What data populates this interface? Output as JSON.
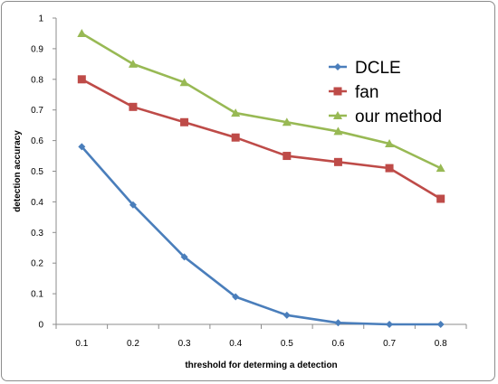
{
  "chart_data": {
    "type": "line",
    "title": "",
    "xlabel": "threshold for determing a detection",
    "ylabel": "detection accuracy",
    "categories": [
      "0.1",
      "0.2",
      "0.3",
      "0.4",
      "0.5",
      "0.6",
      "0.7",
      "0.8"
    ],
    "y_ticks": [
      "0",
      "0.1",
      "0.2",
      "0.3",
      "0.4",
      "0.5",
      "0.6",
      "0.7",
      "0.8",
      "0.9",
      "1"
    ],
    "ylim": [
      0,
      1
    ],
    "grid": false,
    "legend_position": "top-right",
    "series": [
      {
        "name": "DCLE",
        "color": "#4a7ebb",
        "marker": "diamond",
        "values": [
          0.58,
          0.39,
          0.22,
          0.09,
          0.03,
          0.005,
          0.0,
          0.0
        ]
      },
      {
        "name": "fan",
        "color": "#be4b48",
        "marker": "square",
        "values": [
          0.8,
          0.71,
          0.66,
          0.61,
          0.55,
          0.53,
          0.51,
          0.41
        ]
      },
      {
        "name": "our method",
        "color": "#98b954",
        "marker": "triangle",
        "values": [
          0.95,
          0.85,
          0.79,
          0.69,
          0.66,
          0.63,
          0.59,
          0.51
        ]
      }
    ]
  }
}
